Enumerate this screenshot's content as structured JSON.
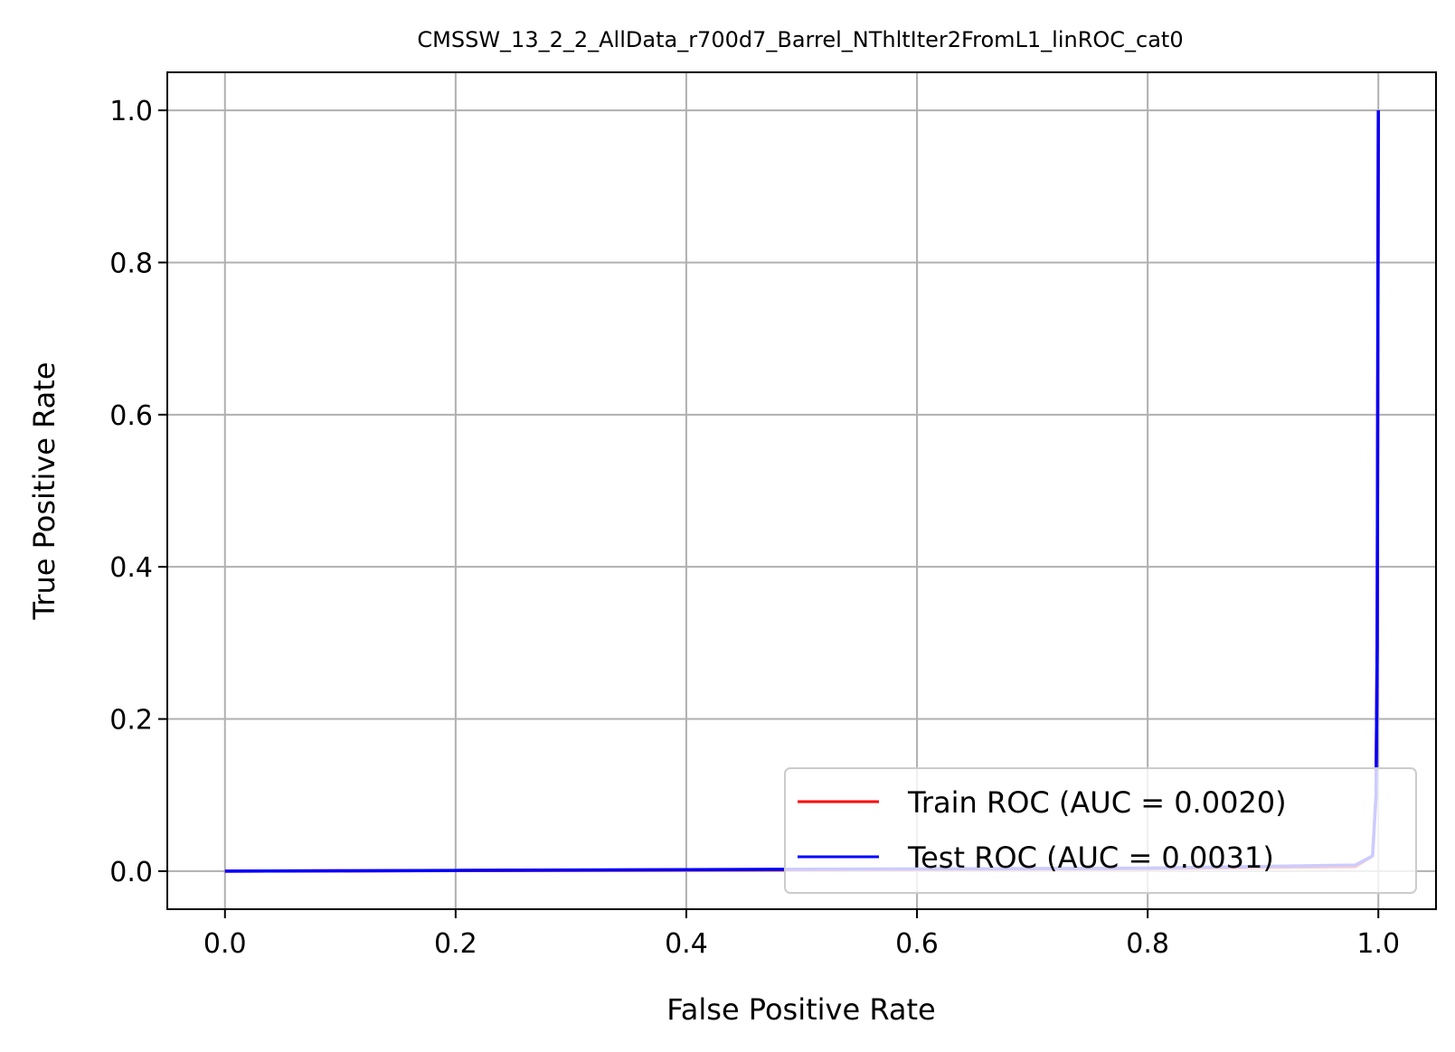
{
  "chart_data": {
    "type": "line",
    "title": "CMSSW_13_2_2_AllData_r700d7_Barrel_NThltIter2FromL1_linROC_cat0",
    "xlabel": "False Positive Rate",
    "ylabel": "True Positive Rate",
    "xlim": [
      -0.05,
      1.05
    ],
    "ylim": [
      -0.05,
      1.05
    ],
    "xticks": [
      0.0,
      0.2,
      0.4,
      0.6,
      0.8,
      1.0
    ],
    "yticks": [
      0.0,
      0.2,
      0.4,
      0.6,
      0.8,
      1.0
    ],
    "xtick_labels": [
      "0.0",
      "0.2",
      "0.4",
      "0.6",
      "0.8",
      "1.0"
    ],
    "ytick_labels": [
      "0.0",
      "0.2",
      "0.4",
      "0.6",
      "0.8",
      "1.0"
    ],
    "grid": true,
    "legend_position": "lower-right",
    "series": [
      {
        "name": "Train ROC (AUC = 0.0020)",
        "color": "#ff0000",
        "x": [
          0.0,
          0.2,
          0.4,
          0.6,
          0.8,
          0.98,
          0.995,
          0.998,
          0.999,
          1.0
        ],
        "y": [
          0.0,
          0.0008,
          0.0016,
          0.0025,
          0.0035,
          0.006,
          0.02,
          0.1,
          0.3,
          1.0
        ]
      },
      {
        "name": "Test ROC (AUC = 0.0031)",
        "color": "#0000ff",
        "x": [
          0.0,
          0.2,
          0.4,
          0.6,
          0.8,
          0.98,
          0.995,
          0.998,
          0.999,
          1.0
        ],
        "y": [
          0.0,
          0.001,
          0.002,
          0.003,
          0.004,
          0.008,
          0.02,
          0.1,
          0.3,
          1.0
        ]
      }
    ]
  }
}
